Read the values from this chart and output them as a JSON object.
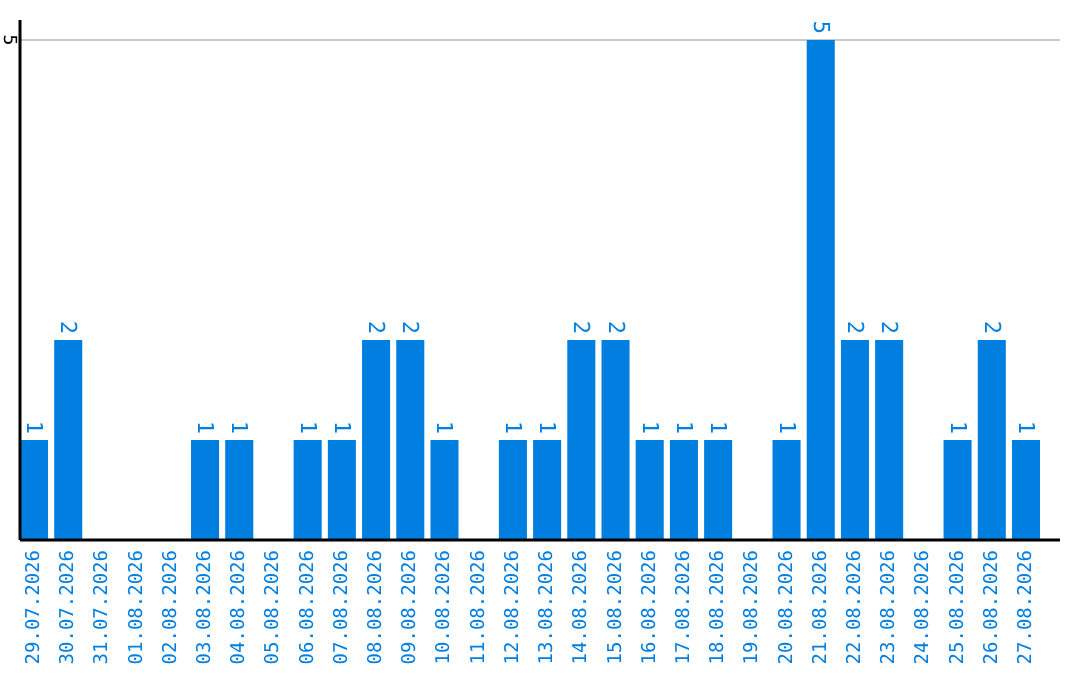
{
  "chart_data": {
    "type": "bar",
    "categories": [
      "29.07.2026",
      "30.07.2026",
      "31.07.2026",
      "01.08.2026",
      "02.08.2026",
      "03.08.2026",
      "04.08.2026",
      "05.08.2026",
      "06.08.2026",
      "07.08.2026",
      "08.08.2026",
      "09.08.2026",
      "10.08.2026",
      "11.08.2026",
      "12.08.2026",
      "13.08.2026",
      "14.08.2026",
      "15.08.2026",
      "16.08.2026",
      "17.08.2026",
      "18.08.2026",
      "19.08.2026",
      "20.08.2026",
      "21.08.2026",
      "22.08.2026",
      "23.08.2026",
      "24.08.2026",
      "25.08.2026",
      "26.08.2026",
      "27.08.2026"
    ],
    "values": [
      1,
      2,
      0,
      0,
      0,
      1,
      1,
      0,
      1,
      1,
      2,
      2,
      1,
      0,
      1,
      1,
      2,
      2,
      1,
      1,
      1,
      0,
      1,
      5,
      2,
      2,
      0,
      1,
      2,
      1
    ],
    "value_labels": [
      "1",
      "2",
      null,
      null,
      null,
      "1",
      "1",
      null,
      "1",
      "1",
      "2",
      "2",
      "1",
      null,
      "1",
      "1",
      "2",
      "2",
      "1",
      "1",
      "1",
      null,
      "1",
      "5",
      "2",
      "2",
      null,
      "1",
      "2",
      "1"
    ],
    "color": "#007fe0",
    "ylim": [
      0,
      5.2
    ],
    "yticks": [
      5
    ],
    "grid": "y"
  }
}
